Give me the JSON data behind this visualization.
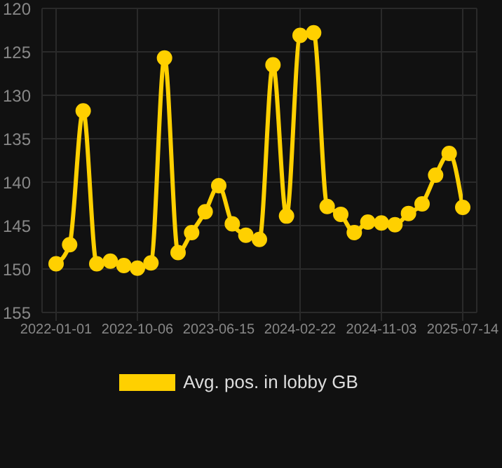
{
  "chart_data": {
    "type": "line",
    "categories": [
      "2022-01-01",
      null,
      null,
      null,
      null,
      null,
      "2022-10-06",
      null,
      null,
      null,
      null,
      null,
      "2023-06-15",
      null,
      null,
      null,
      null,
      null,
      "2024-02-22",
      null,
      null,
      null,
      null,
      null,
      "2024-11-03",
      null,
      null,
      null,
      null,
      null,
      "2025-07-14"
    ],
    "series": [
      {
        "name": "Avg. pos. in lobby GB",
        "color": "#ffd000",
        "values": [
          149.4,
          147.2,
          131.8,
          149.4,
          149.1,
          149.6,
          149.9,
          149.3,
          125.7,
          148.1,
          145.8,
          143.4,
          140.4,
          144.8,
          146.1,
          146.6,
          126.5,
          143.9,
          123.1,
          122.8,
          142.8,
          143.7,
          145.8,
          144.6,
          144.7,
          144.9,
          143.6,
          142.5,
          139.2,
          136.7,
          142.9
        ]
      }
    ],
    "ylim": [
      155,
      120
    ],
    "yticks": [
      120,
      125,
      130,
      135,
      140,
      145,
      150,
      155
    ],
    "grid": true,
    "legend": "bottom",
    "marker": "circle",
    "line_style": "solid"
  }
}
